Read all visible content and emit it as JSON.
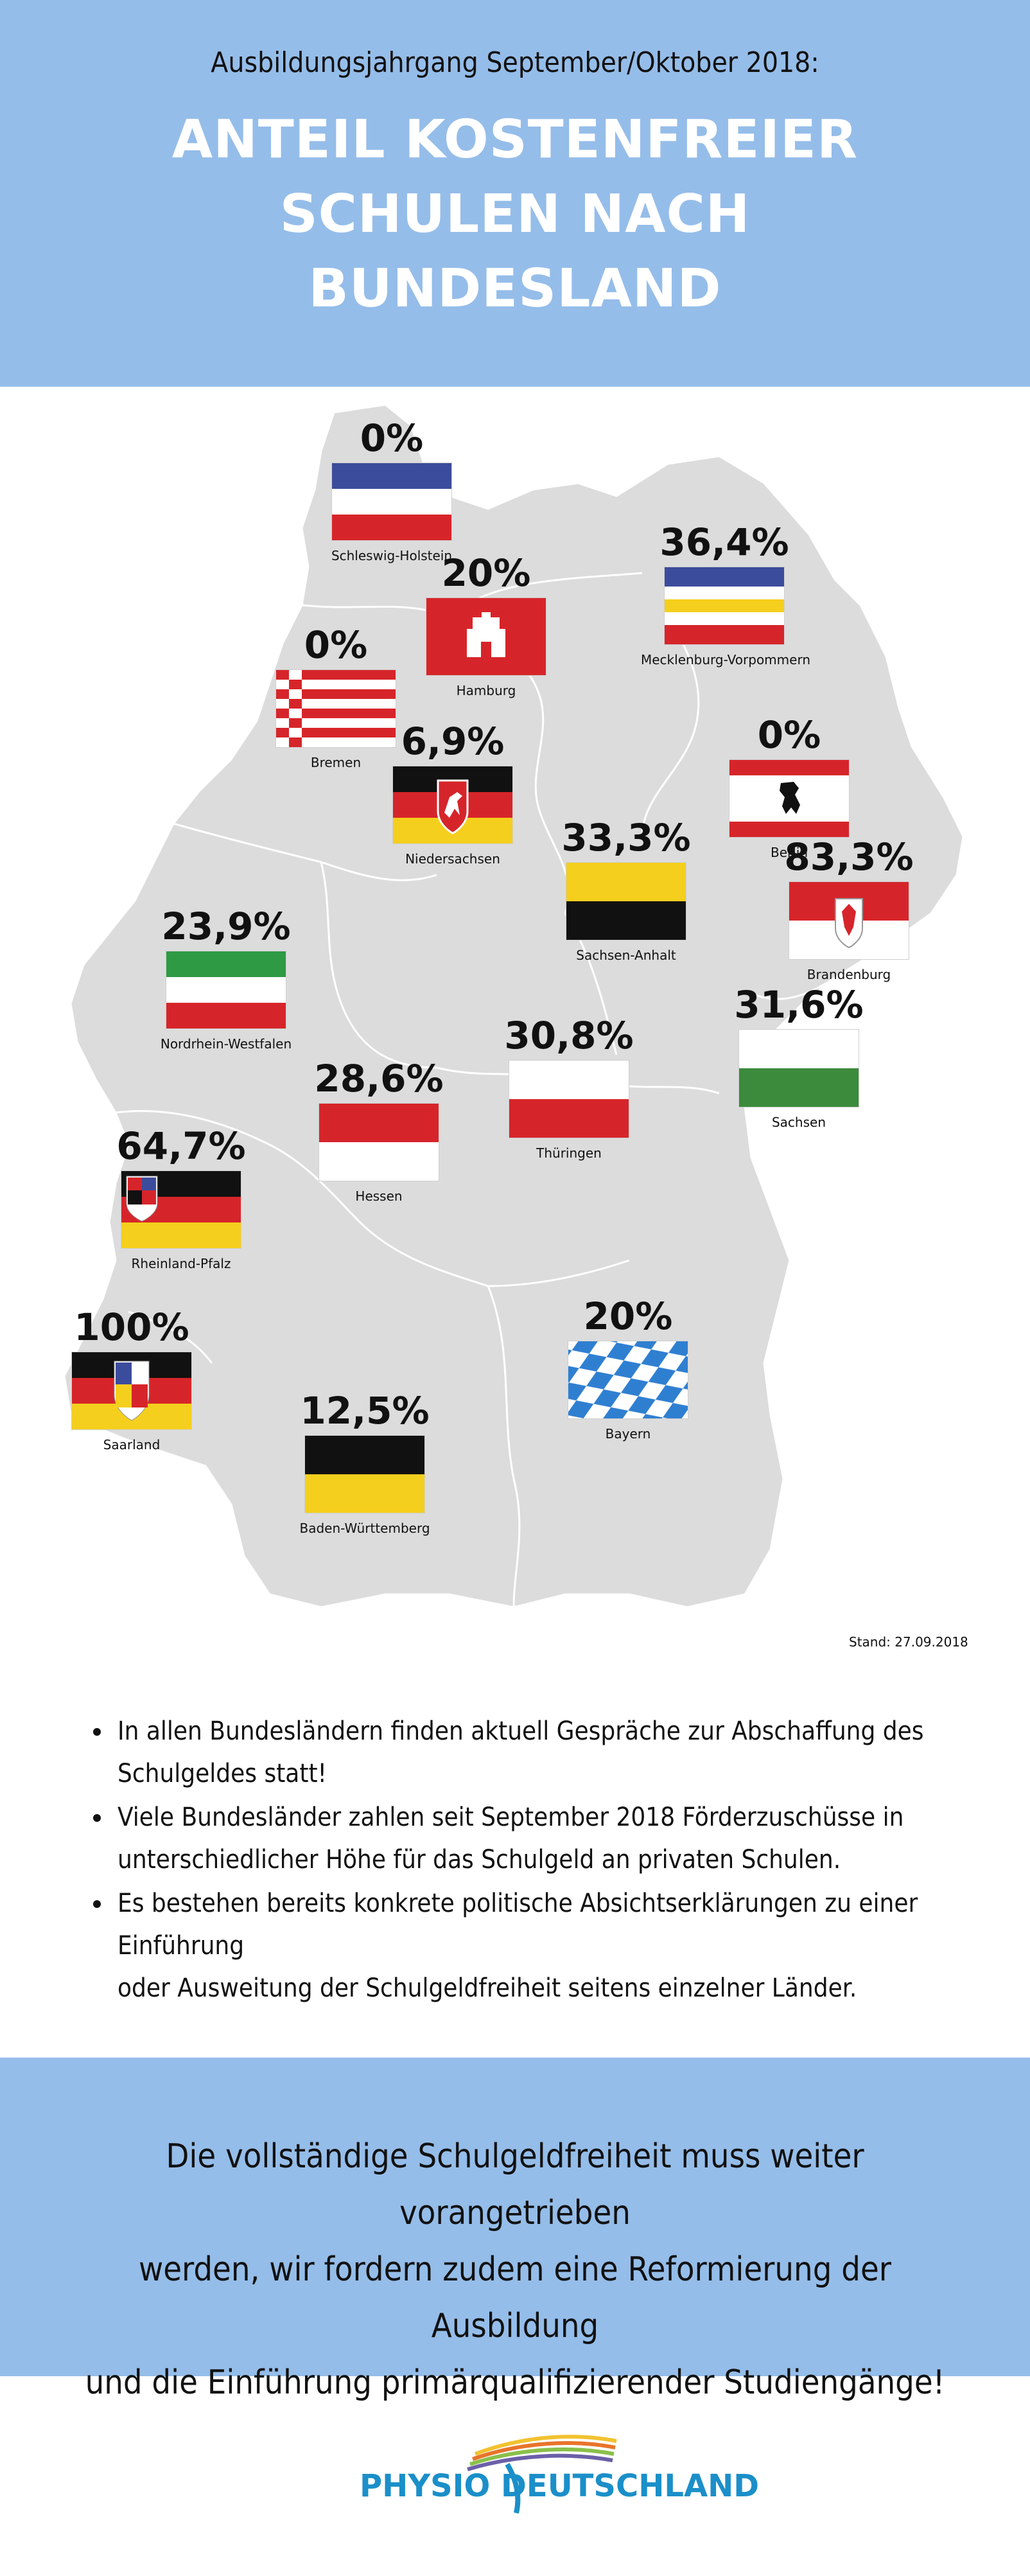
{
  "header": {
    "subtitle": "Ausbildungsjahrgang September/Oktober 2018:",
    "title_line1": "ANTEIL KOSTENFREIER",
    "title_line2": "SCHULEN NACH",
    "title_line3": "BUNDESLAND"
  },
  "map": {
    "stand": "Stand: 27.09.2018",
    "states": {
      "schleswig_holstein": {
        "name": "Schleswig-Holstein",
        "value": "0%"
      },
      "hamburg": {
        "name": "Hamburg",
        "value": "20%"
      },
      "mecklenburg_vorpommern": {
        "name": "Mecklenburg-Vorpommern",
        "value": "36,4%"
      },
      "bremen": {
        "name": "Bremen",
        "value": "0%"
      },
      "niedersachsen": {
        "name": "Niedersachsen",
        "value": "6,9%"
      },
      "berlin": {
        "name": "Berlin",
        "value": "0%"
      },
      "sachsen_anhalt": {
        "name": "Sachsen-Anhalt",
        "value": "33,3%"
      },
      "brandenburg": {
        "name": "Brandenburg",
        "value": "83,3%"
      },
      "nordrhein_westfalen": {
        "name": "Nordrhein-Westfalen",
        "value": "23,9%"
      },
      "sachsen": {
        "name": "Sachsen",
        "value": "31,6%"
      },
      "thueringen": {
        "name": "Thüringen",
        "value": "30,8%"
      },
      "hessen": {
        "name": "Hessen",
        "value": "28,6%"
      },
      "rheinland_pfalz": {
        "name": "Rheinland-Pfalz",
        "value": "64,7%"
      },
      "saarland": {
        "name": "Saarland",
        "value": "100%"
      },
      "bayern": {
        "name": "Bayern",
        "value": "20%"
      },
      "baden_wuerttemberg": {
        "name": "Baden-Württemberg",
        "value": "12,5%"
      }
    }
  },
  "bullets": [
    {
      "line1": "In allen Bundesländern finden aktuell Gespräche zur Abschaffung des",
      "line2": "Schulgeldes statt!"
    },
    {
      "line1": "Viele Bundesländer zahlen seit September 2018 Förderzuschüsse in",
      "line2": "unterschiedlicher Höhe für das Schulgeld an privaten Schulen."
    },
    {
      "line1": "Es bestehen bereits konkrete politische Absichtserklärungen zu einer Einführung",
      "line2": "oder Ausweitung der Schulgeldfreiheit seitens einzelner Länder."
    }
  ],
  "footer": {
    "line1": "Die vollständige Schulgeldfreiheit muss weiter vorangetrieben",
    "line2": "werden, wir fordern zudem eine Reformierung der Ausbildung",
    "line3": "und die Einführung primärqualifizierender Studiengänge!"
  },
  "logo": {
    "text": "PHYSIO DEUTSCHLAND"
  },
  "colors": {
    "header_bg": "#95bde9",
    "map_fill": "#dcdcdc",
    "logo_blue": "#1b8fc9"
  }
}
